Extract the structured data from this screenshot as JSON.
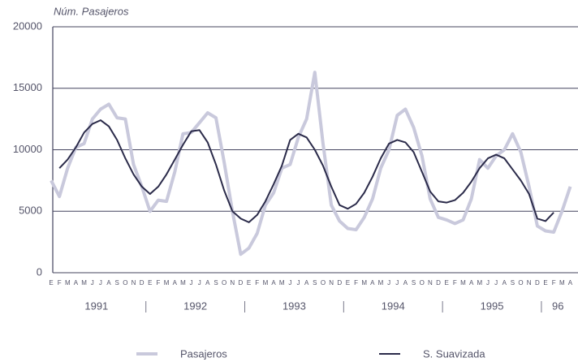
{
  "chart_data": {
    "type": "line",
    "y_axis_label": "Núm. Pasajeros",
    "x": [
      "E",
      "F",
      "M",
      "A",
      "M",
      "J",
      "J",
      "A",
      "S",
      "O",
      "N",
      "D",
      "E",
      "F",
      "M",
      "A",
      "M",
      "J",
      "J",
      "A",
      "S",
      "O",
      "N",
      "D",
      "E",
      "F",
      "M",
      "A",
      "M",
      "J",
      "J",
      "A",
      "S",
      "O",
      "N",
      "D",
      "E",
      "F",
      "M",
      "A",
      "M",
      "J",
      "J",
      "A",
      "S",
      "O",
      "N",
      "D",
      "E",
      "F",
      "M",
      "A",
      "M",
      "J",
      "J",
      "A",
      "S",
      "O",
      "N",
      "D",
      "E",
      "F",
      "M",
      "A"
    ],
    "year_labels": [
      "1991",
      "1992",
      "1993",
      "1994",
      "1995",
      "96"
    ],
    "series": [
      {
        "name": "Pasajeros",
        "color": "#c9c9dc",
        "values": [
          7500,
          6200,
          8500,
          10200,
          10500,
          12500,
          13300,
          13700,
          12600,
          12500,
          8800,
          7000,
          5000,
          5900,
          5800,
          8200,
          11300,
          11400,
          12200,
          13000,
          12600,
          9000,
          5000,
          1500,
          2000,
          3200,
          5500,
          6500,
          8500,
          8800,
          11000,
          12500,
          16300,
          10500,
          5500,
          4200,
          3600,
          3500,
          4500,
          6000,
          8500,
          10000,
          12800,
          13300,
          11800,
          9500,
          6000,
          4500,
          4300,
          4000,
          4300,
          6000,
          9200,
          8500,
          9500,
          10000,
          11300,
          9800,
          7000,
          3800,
          3400,
          3300,
          5000,
          7000
        ]
      },
      {
        "name": "S. Suavizada",
        "color": "#2b2b4a",
        "values": [
          null,
          8500,
          9200,
          10200,
          11400,
          12100,
          12400,
          11900,
          10800,
          9300,
          8000,
          7000,
          6400,
          7000,
          8000,
          9200,
          10400,
          11500,
          11600,
          10600,
          8800,
          6700,
          5000,
          4400,
          4100,
          4700,
          5800,
          7200,
          8700,
          10800,
          11300,
          11000,
          10000,
          8700,
          7000,
          5500,
          5200,
          5600,
          6500,
          7800,
          9300,
          10500,
          10800,
          10600,
          9800,
          8200,
          6600,
          5800,
          5700,
          5900,
          6500,
          7400,
          8500,
          9300,
          9600,
          9300,
          8400,
          7500,
          6400,
          4400,
          4200,
          4900,
          null,
          null
        ]
      }
    ],
    "ylim": [
      0,
      20000
    ],
    "yticks": [
      0,
      5000,
      10000,
      15000,
      20000
    ],
    "grid": true
  }
}
